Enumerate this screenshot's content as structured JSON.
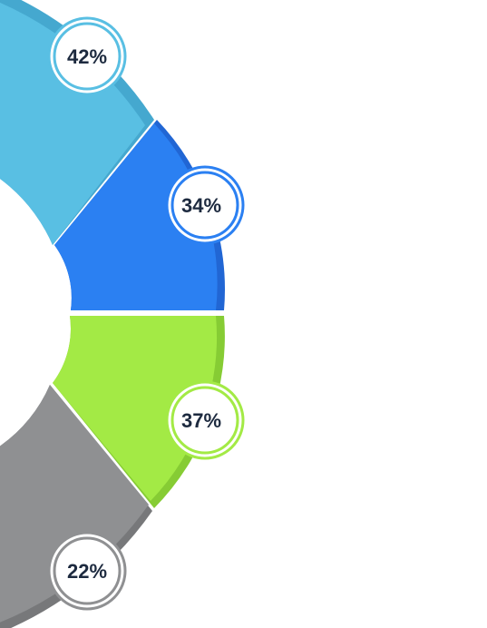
{
  "segments": [
    {
      "label": "42%",
      "color": "#59bfe3",
      "shade": "#45a8cf"
    },
    {
      "label": "34%",
      "color": "#2b80f2",
      "shade": "#2166d4"
    },
    {
      "label": "37%",
      "color": "#a3ea45",
      "shade": "#86cc34"
    },
    {
      "label": "22%",
      "color": "#8f9092",
      "shade": "#77787a"
    }
  ]
}
